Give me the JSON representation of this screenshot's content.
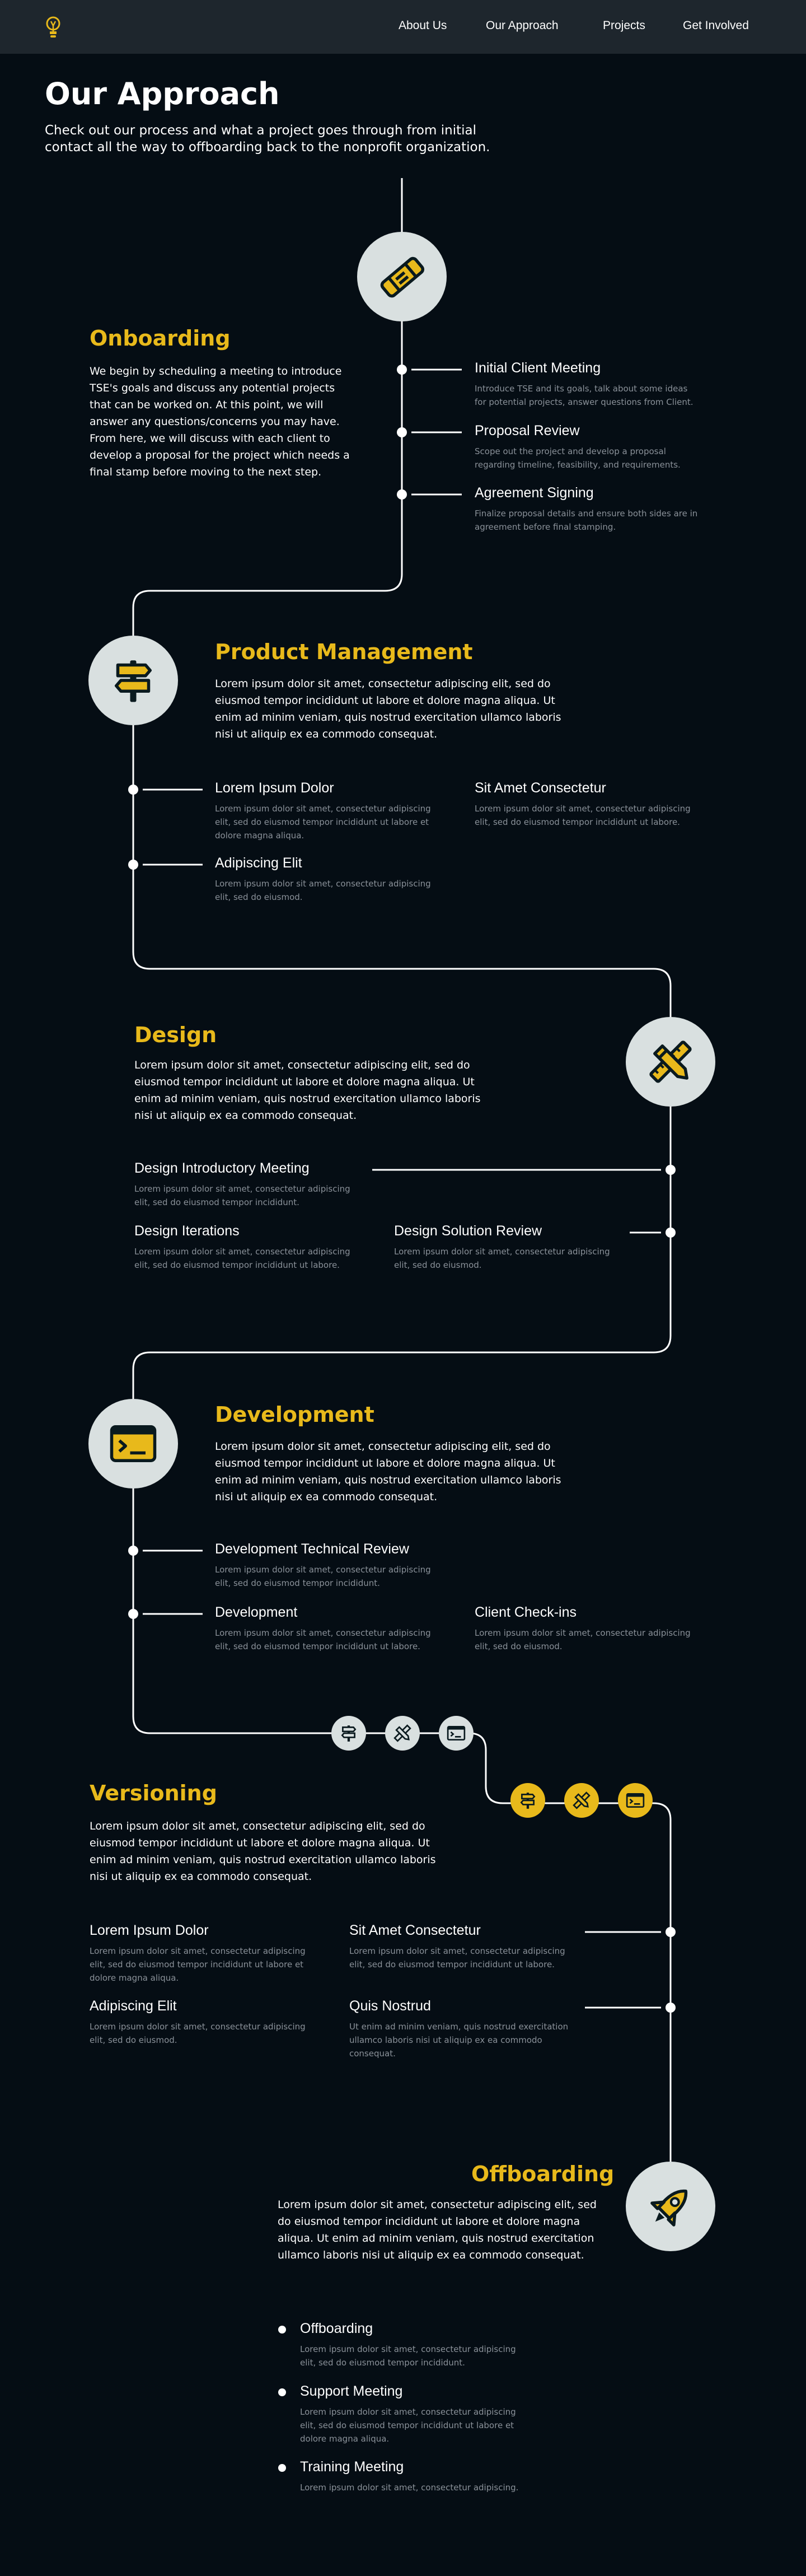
{
  "nav": {
    "links": [
      "About Us",
      "Our Approach",
      "Projects",
      "Get Involved"
    ],
    "logo_icon": "lightbulb-icon"
  },
  "page": {
    "title": "Our Approach",
    "subtitle": "Check out our process and what a project goes through from initial contact all the way to offboarding back to the nonprofit organization."
  },
  "colors": {
    "background": "#050d14",
    "nav": "#1e262d",
    "accent": "#e8b91b",
    "icon_circle": "#d9e0e0",
    "muted_text": "#8a9199"
  },
  "onboarding": {
    "title": "Onboarding",
    "icon": "handshake-icon",
    "body": "We begin by scheduling a meeting to introduce TSE's goals and discuss any potential projects that can be worked on. At this point, we will answer any questions/concerns you may have. From here, we will discuss with each client to develop a proposal for the project which needs a final stamp before moving to the next step.",
    "items": [
      {
        "title": "Initial Client Meeting",
        "desc": "Introduce TSE and its goals, talk about some ideas for potential projects, answer questions from Client."
      },
      {
        "title": "Proposal Review",
        "desc": "Scope out the project and develop a proposal regarding timeline, feasibility, and requirements."
      },
      {
        "title": "Agreement Signing",
        "desc": "Finalize proposal details and ensure both sides are in agreement before final stamping."
      }
    ]
  },
  "product": {
    "title": "Product Management",
    "icon": "signpost-icon",
    "body": "Lorem ipsum dolor sit amet, consectetur adipiscing elit, sed do eiusmod tempor incididunt ut labore et dolore magna aliqua. Ut enim ad minim veniam, quis nostrud exercitation ullamco laboris nisi ut aliquip ex ea commodo consequat.",
    "items": [
      {
        "title": "Lorem Ipsum Dolor",
        "desc": "Lorem ipsum dolor sit amet, consectetur adipiscing elit, sed do eiusmod tempor incididunt ut labore et dolore magna aliqua."
      },
      {
        "title": "Sit Amet Consectetur",
        "desc": "Lorem ipsum dolor sit amet, consectetur adipiscing elit, sed do eiusmod tempor incididunt ut labore."
      },
      {
        "title": "Adipiscing Elit",
        "desc": "Lorem ipsum dolor sit amet, consectetur adipiscing elit, sed do eiusmod."
      }
    ]
  },
  "design": {
    "title": "Design",
    "icon": "pencil-ruler-icon",
    "body": "Lorem ipsum dolor sit amet, consectetur adipiscing elit, sed do eiusmod tempor incididunt ut labore et dolore magna aliqua. Ut enim ad minim veniam, quis nostrud exercitation ullamco laboris nisi ut aliquip ex ea commodo consequat.",
    "items": [
      {
        "title": "Design Introductory Meeting",
        "desc": "Lorem ipsum dolor sit amet, consectetur adipiscing elit, sed do eiusmod tempor incididunt."
      },
      {
        "title": "Design Iterations",
        "desc": "Lorem ipsum dolor sit amet, consectetur adipiscing elit, sed do eiusmod tempor incididunt ut labore."
      },
      {
        "title": "Design Solution Review",
        "desc": "Lorem ipsum dolor sit amet, consectetur adipiscing elit, sed do eiusmod."
      }
    ]
  },
  "development": {
    "title": "Development",
    "icon": "terminal-icon",
    "body": "Lorem ipsum dolor sit amet, consectetur adipiscing elit, sed do eiusmod tempor incididunt ut labore et dolore magna aliqua. Ut enim ad minim veniam, quis nostrud exercitation ullamco laboris nisi ut aliquip ex ea commodo consequat.",
    "items": [
      {
        "title": "Development Technical Review",
        "desc": "Lorem ipsum dolor sit amet, consectetur adipiscing elit, sed do eiusmod tempor incididunt."
      },
      {
        "title": "Development",
        "desc": "Lorem ipsum dolor sit amet, consectetur adipiscing elit, sed do eiusmod tempor incididunt ut labore."
      },
      {
        "title": "Client Check-ins",
        "desc": "Lorem ipsum dolor sit amet, consectetur adipiscing elit, sed do eiusmod."
      }
    ]
  },
  "versioning": {
    "title": "Versioning",
    "mini_icons": [
      "signpost-icon",
      "pencil-ruler-icon",
      "terminal-icon"
    ],
    "body": "Lorem ipsum dolor sit amet, consectetur adipiscing elit, sed do eiusmod tempor incididunt ut labore et dolore magna aliqua. Ut enim ad minim veniam, quis nostrud exercitation ullamco laboris nisi ut aliquip ex ea commodo consequat.",
    "items": [
      {
        "title": "Lorem Ipsum Dolor",
        "desc": "Lorem ipsum dolor sit amet, consectetur adipiscing elit, sed do eiusmod tempor incididunt ut labore et dolore magna aliqua."
      },
      {
        "title": "Sit Amet Consectetur",
        "desc": "Lorem ipsum dolor sit amet, consectetur adipiscing elit, sed do eiusmod tempor incididunt ut labore."
      },
      {
        "title": "Adipiscing Elit",
        "desc": "Lorem ipsum dolor sit amet, consectetur adipiscing elit, sed do eiusmod."
      },
      {
        "title": "Quis Nostrud",
        "desc": "Ut enim ad minim veniam, quis nostrud exercitation ullamco laboris nisi ut aliquip ex ea commodo consequat."
      }
    ]
  },
  "offboarding": {
    "title": "Offboarding",
    "icon": "rocket-icon",
    "body": "Lorem ipsum dolor sit amet, consectetur adipiscing elit, sed do eiusmod tempor incididunt ut labore et dolore magna aliqua. Ut enim ad minim veniam, quis nostrud exercitation ullamco laboris nisi ut aliquip ex ea commodo consequat.",
    "items": [
      {
        "title": "Offboarding",
        "desc": "Lorem ipsum dolor sit amet, consectetur adipiscing elit, sed do eiusmod tempor incididunt."
      },
      {
        "title": "Support Meeting",
        "desc": "Lorem ipsum dolor sit amet, consectetur adipiscing elit, sed do eiusmod tempor incididunt ut labore et dolore magna aliqua."
      },
      {
        "title": "Training Meeting",
        "desc": "Lorem ipsum dolor sit amet, consectetur adipiscing."
      }
    ]
  }
}
